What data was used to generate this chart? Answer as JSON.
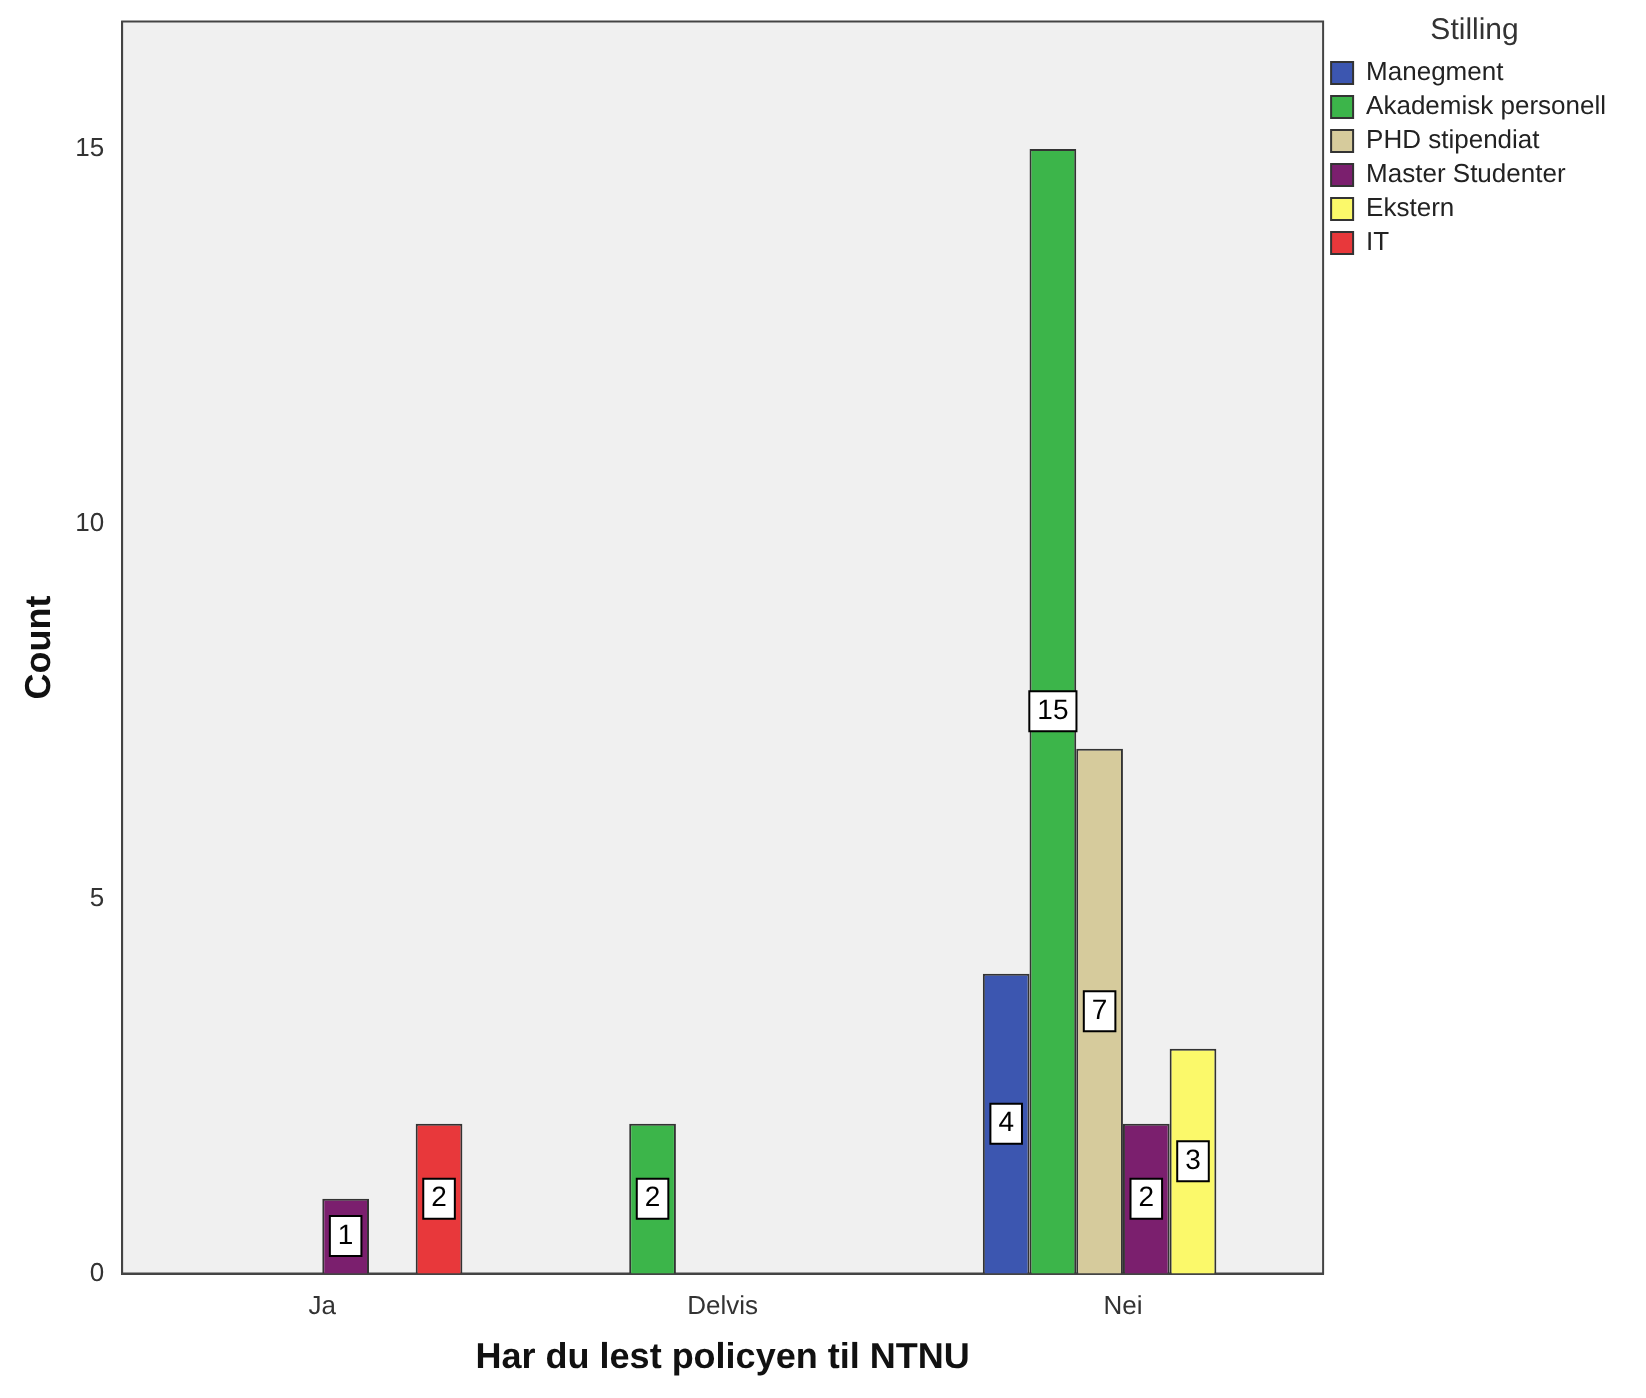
{
  "chart_data": {
    "type": "bar",
    "xlabel": "Har du lest policyen til NTNU",
    "ylabel": "Count",
    "legend_title": "Stilling",
    "categories": [
      "Ja",
      "Delvis",
      "Nei"
    ],
    "series": [
      {
        "name": "Manegment",
        "color": "#3c56b0",
        "values": [
          null,
          null,
          4
        ]
      },
      {
        "name": "Akademisk personell",
        "color": "#3cb54a",
        "values": [
          null,
          2,
          15
        ]
      },
      {
        "name": "PHD stipendiat",
        "color": "#d6cb9c",
        "values": [
          null,
          null,
          7
        ]
      },
      {
        "name": "Master Studenter",
        "color": "#7b1f6e",
        "values": [
          1,
          null,
          2
        ]
      },
      {
        "name": "Ekstern",
        "color": "#fbf96a",
        "values": [
          null,
          null,
          3
        ]
      },
      {
        "name": "IT",
        "color": "#e8383b",
        "values": [
          2,
          null,
          null
        ]
      }
    ],
    "ylim": [
      0,
      16.7
    ],
    "yticks": [
      0,
      5,
      10,
      15
    ],
    "grid": false,
    "legend": "top right",
    "data_labels": true
  }
}
